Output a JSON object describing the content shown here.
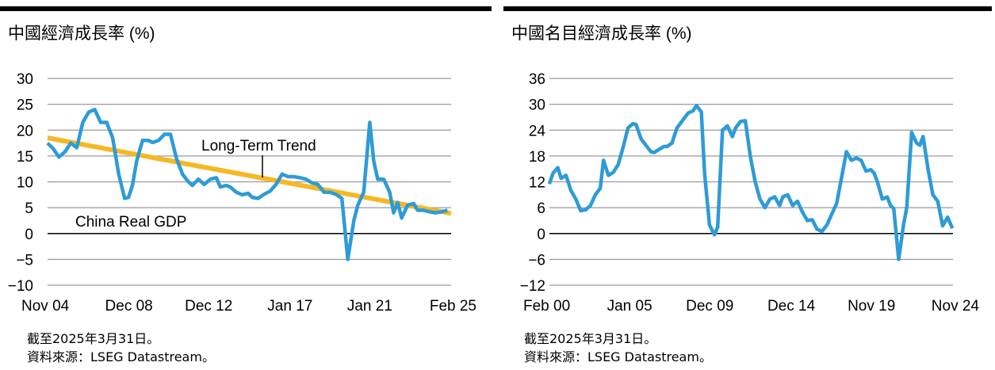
{
  "chart_data": [
    {
      "type": "line",
      "title": "中國經濟成長率 (%)",
      "xlabel": "",
      "ylabel": "",
      "ylim": [
        -10,
        30
      ],
      "yticks": [
        "30",
        "25",
        "20",
        "15",
        "10",
        "5",
        "0",
        "−5",
        "−10"
      ],
      "ytick_values": [
        30,
        25,
        20,
        15,
        10,
        5,
        0,
        -5,
        -10
      ],
      "xlim": [
        2004.833,
        2025.083
      ],
      "xtick_labels": [
        "Nov 04",
        "Dec 08",
        "Dec 12",
        "Jan 17",
        "Jan 21",
        "Feb 25"
      ],
      "xtick_positions": [
        2004.833,
        2008.917,
        2012.917,
        2017.0,
        2021.0,
        2025.083
      ],
      "grid": true,
      "annotations": [
        "Long-Term Trend",
        "China Real GDP"
      ],
      "series": [
        {
          "name": "China Real GDP",
          "color": "#2e9bd6",
          "x": [
            2004.83,
            2005.1,
            2005.4,
            2005.7,
            2006.0,
            2006.3,
            2006.6,
            2006.9,
            2007.2,
            2007.5,
            2007.8,
            2008.1,
            2008.4,
            2008.7,
            2008.9,
            2009.1,
            2009.3,
            2009.6,
            2009.9,
            2010.1,
            2010.4,
            2010.7,
            2011.0,
            2011.3,
            2011.6,
            2011.9,
            2012.1,
            2012.4,
            2012.7,
            2013.0,
            2013.3,
            2013.5,
            2013.8,
            2014.0,
            2014.3,
            2014.6,
            2014.9,
            2015.1,
            2015.4,
            2015.7,
            2016.0,
            2016.3,
            2016.6,
            2016.9,
            2017.2,
            2017.5,
            2017.8,
            2018.1,
            2018.4,
            2018.7,
            2019.0,
            2019.3,
            2019.6,
            2019.9,
            2020.2,
            2020.4,
            2020.7,
            2021.0,
            2021.2,
            2021.4,
            2021.7,
            2022.0,
            2022.2,
            2022.4,
            2022.6,
            2022.9,
            2023.2,
            2023.4,
            2023.7,
            2024.0,
            2024.3,
            2024.6,
            2024.9
          ],
          "values": [
            17.5,
            16.5,
            14.8,
            15.8,
            17.5,
            16.6,
            21.5,
            23.5,
            24.0,
            21.5,
            21.5,
            18.5,
            11.5,
            6.8,
            7.0,
            9.5,
            14.0,
            18.0,
            18.0,
            17.6,
            18.0,
            19.2,
            19.2,
            14.5,
            11.5,
            10.0,
            9.3,
            10.5,
            9.5,
            10.5,
            10.8,
            9.0,
            9.3,
            9.0,
            8.0,
            7.5,
            7.8,
            7.0,
            6.8,
            7.6,
            8.2,
            9.5,
            11.5,
            11.0,
            11.0,
            10.8,
            10.5,
            9.8,
            9.5,
            8.0,
            8.0,
            7.6,
            6.8,
            -5.0,
            2.5,
            5.5,
            8.0,
            21.5,
            14.0,
            10.5,
            10.5,
            8.0,
            4.0,
            6.0,
            3.0,
            5.5,
            5.8,
            4.5,
            4.5,
            4.2,
            4.0,
            4.2,
            4.5
          ]
        },
        {
          "name": "Long-Term Trend",
          "color": "#f5b824",
          "x": [
            2004.83,
            2025.08
          ],
          "values": [
            18.5,
            3.9
          ]
        }
      ]
    },
    {
      "type": "line",
      "title": "中國名目經濟成長率 (%)",
      "xlabel": "",
      "ylabel": "",
      "ylim": [
        -12,
        36
      ],
      "yticks": [
        "36",
        "30",
        "24",
        "18",
        "12",
        "6",
        "0",
        "−6",
        "−12"
      ],
      "ytick_values": [
        36,
        30,
        24,
        18,
        12,
        6,
        0,
        -6,
        -12
      ],
      "xlim": [
        2000.083,
        2024.833
      ],
      "xtick_labels": [
        "Feb 00",
        "Jan 05",
        "Dec 09",
        "Dec 14",
        "Nov 19",
        "Nov 24"
      ],
      "xtick_positions": [
        2000.083,
        2005.0,
        2009.917,
        2014.917,
        2019.833,
        2024.833
      ],
      "grid": true,
      "series": [
        {
          "name": "",
          "color": "#2e9bd6",
          "x": [
            2000.08,
            2000.3,
            2000.6,
            2000.8,
            2001.1,
            2001.4,
            2001.7,
            2002.0,
            2002.3,
            2002.6,
            2002.9,
            2003.2,
            2003.4,
            2003.7,
            2004.0,
            2004.3,
            2004.6,
            2004.9,
            2005.2,
            2005.4,
            2005.7,
            2006.0,
            2006.3,
            2006.5,
            2006.8,
            2007.1,
            2007.3,
            2007.6,
            2007.9,
            2008.1,
            2008.4,
            2008.6,
            2008.9,
            2009.1,
            2009.4,
            2009.6,
            2009.9,
            2010.2,
            2010.4,
            2010.7,
            2011.0,
            2011.3,
            2011.5,
            2011.8,
            2012.1,
            2012.4,
            2012.7,
            2013.0,
            2013.3,
            2013.6,
            2013.9,
            2014.2,
            2014.4,
            2014.7,
            2015.0,
            2015.3,
            2015.6,
            2015.9,
            2016.2,
            2016.5,
            2016.8,
            2017.1,
            2017.4,
            2017.7,
            2018.0,
            2018.3,
            2018.6,
            2018.9,
            2019.2,
            2019.5,
            2019.8,
            2020.0,
            2020.2,
            2020.5,
            2020.8,
            2021.0,
            2021.2,
            2021.5,
            2021.8,
            2022.0,
            2022.3,
            2022.6,
            2022.8,
            2023.0,
            2023.3,
            2023.6,
            2023.9,
            2024.2,
            2024.5,
            2024.8
          ],
          "values": [
            11.5,
            14.0,
            15.3,
            12.8,
            13.5,
            10.0,
            8.0,
            5.3,
            5.5,
            6.5,
            9.0,
            10.5,
            17.0,
            13.5,
            14.2,
            16.0,
            20.0,
            24.5,
            25.5,
            25.3,
            22.0,
            20.5,
            19.0,
            18.8,
            19.5,
            20.2,
            20.2,
            21.0,
            24.5,
            25.5,
            27.0,
            28.0,
            28.5,
            29.7,
            28.2,
            14.0,
            2.0,
            -0.3,
            1.5,
            24.0,
            25.0,
            22.5,
            24.5,
            26.0,
            26.2,
            18.0,
            12.0,
            8.0,
            6.0,
            8.0,
            8.5,
            6.5,
            8.5,
            9.0,
            6.5,
            7.5,
            5.0,
            3.0,
            3.2,
            1.0,
            0.5,
            2.0,
            4.5,
            7.0,
            13.0,
            19.0,
            17.0,
            17.5,
            17.0,
            14.5,
            14.8,
            14.0,
            12.0,
            8.0,
            8.5,
            6.5,
            5.8,
            -6.0,
            2.0,
            6.0,
            23.5,
            21.0,
            20.5,
            22.5,
            15.0,
            9.0,
            7.5,
            1.8,
            3.8,
            1.2
          ]
        }
      ]
    }
  ],
  "left_panel": {
    "note_date": "截至2025年3月31日。",
    "note_source": "資料來源：LSEG Datastream。"
  },
  "right_panel": {
    "note_date": "截至2025年3月31日。",
    "note_source": "資料來源：LSEG Datastream。"
  }
}
